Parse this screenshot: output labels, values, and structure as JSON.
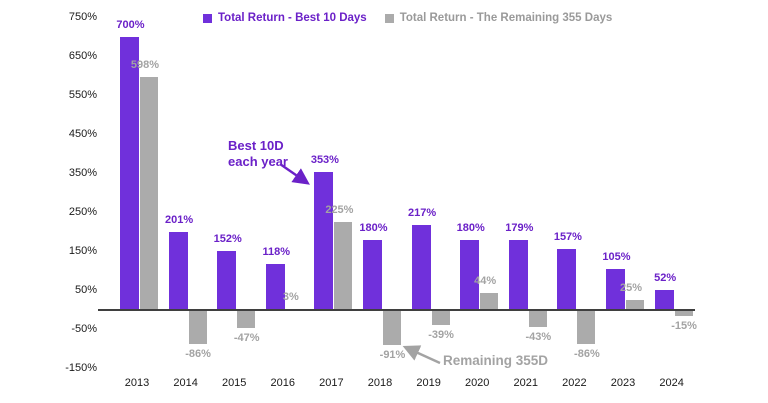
{
  "chart_data": {
    "type": "bar",
    "title": "",
    "xlabel": "",
    "ylabel": "",
    "ylim": [
      -150,
      750
    ],
    "grid": false,
    "legend_position": "top",
    "categories": [
      "2013",
      "2014",
      "2015",
      "2016",
      "2017",
      "2018",
      "2019",
      "2020",
      "2021",
      "2022",
      "2023",
      "2024"
    ],
    "series": [
      {
        "name": "Total Return - Best 10 Days",
        "color": "#7030db",
        "values": [
          700,
          201,
          152,
          118,
          353,
          180,
          217,
          180,
          179,
          157,
          105,
          52
        ],
        "labels": [
          "700%",
          "201%",
          "152%",
          "118%",
          "353%",
          "180%",
          "217%",
          "180%",
          "179%",
          "157%",
          "105%",
          "52%"
        ]
      },
      {
        "name": "Total Return - The Remaining 355 Days",
        "color": "#ababab",
        "values": [
          598,
          -86,
          -47,
          3,
          225,
          -91,
          -39,
          44,
          -43,
          -86,
          25,
          -15
        ],
        "labels": [
          "598%",
          "-86%",
          "-47%",
          "3%",
          "225%",
          "-91%",
          "-39%",
          "44%",
          "-43%",
          "-86%",
          "25%",
          "-15%"
        ]
      }
    ],
    "y_ticks": [
      "750%",
      "650%",
      "550%",
      "450%",
      "350%",
      "250%",
      "150%",
      "50%",
      "-50%",
      "-150%"
    ],
    "y_tick_values": [
      750,
      650,
      550,
      450,
      350,
      250,
      150,
      50,
      -50,
      -150
    ],
    "annotations": [
      {
        "id": "best",
        "line1": "Best 10D",
        "line2": "each year",
        "color": "#6b21c8"
      },
      {
        "id": "rest",
        "line1": "Remaining 355D",
        "line2": "",
        "color": "#a3a3a3"
      }
    ]
  }
}
